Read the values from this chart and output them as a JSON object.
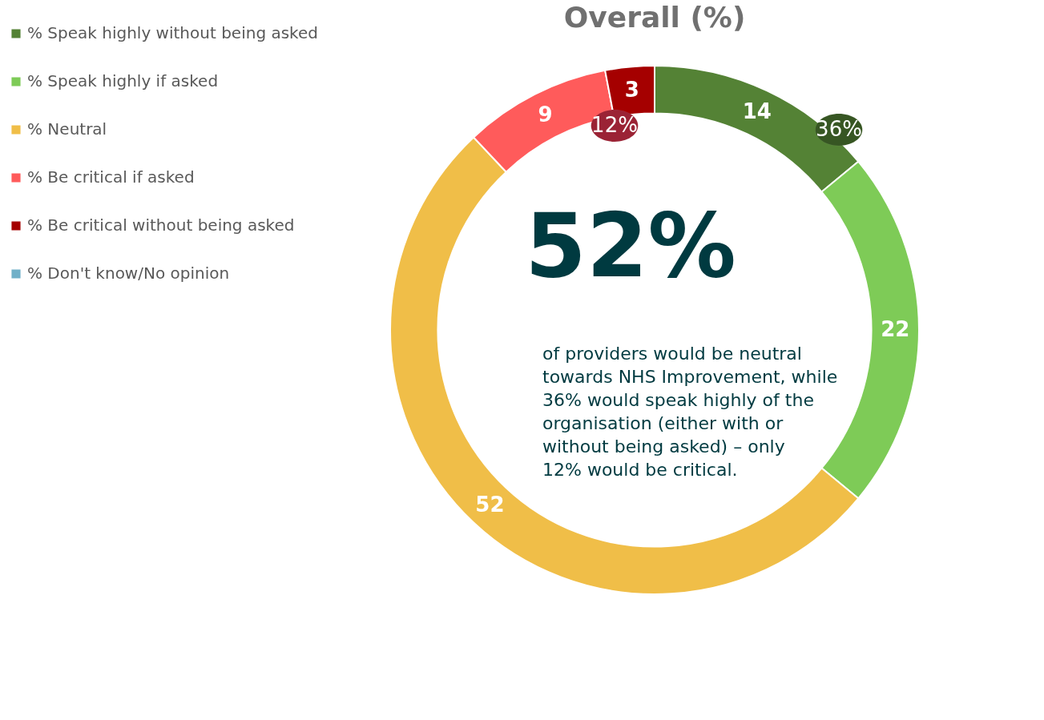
{
  "chart_data": {
    "type": "donut",
    "title": "Overall (%)",
    "categories": [
      "% Speak highly without being asked",
      "% Speak highly if asked",
      "% Neutral",
      "% Be critical if asked",
      "% Be critical without being asked",
      "% Don't know/No opinion"
    ],
    "values": [
      14,
      22,
      52,
      9,
      3,
      0
    ],
    "value_labels": [
      "14",
      "22",
      "52",
      "9",
      "3",
      null
    ],
    "colors": [
      "#548235",
      "#7ecb57",
      "#f0be48",
      "#ff5b5b",
      "#a50000",
      "#70b0c8"
    ],
    "legend": "left",
    "annotations": [
      "36%",
      "12%",
      "52%",
      "of providers would be neutral towards NHS Improvement, while 36% would speak highly of the organisation (either with or without being asked) – only 12% would be critical."
    ]
  }
}
